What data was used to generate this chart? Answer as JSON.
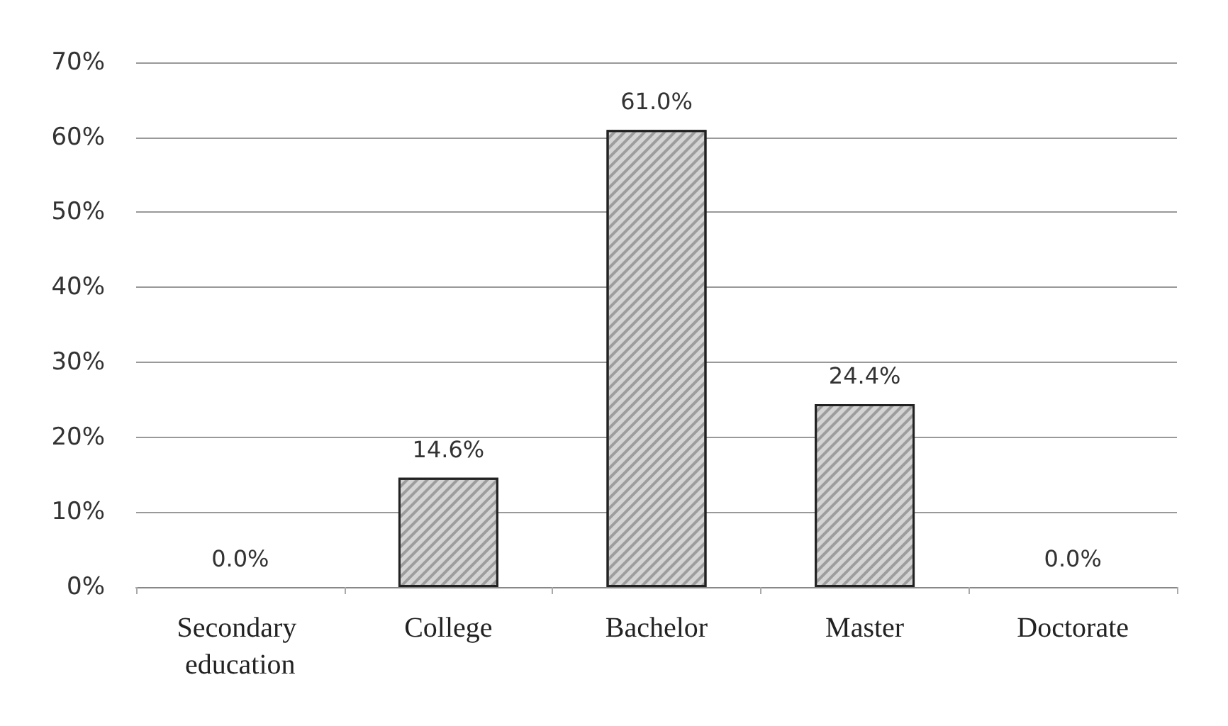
{
  "chart_data": {
    "type": "bar",
    "categories": [
      "Secondary education",
      "College",
      "Bachelor",
      "Master",
      "Doctorate"
    ],
    "values": [
      0.0,
      14.6,
      61.0,
      24.4,
      0.0
    ],
    "value_labels": [
      "0.0%",
      "14.6%",
      "61.0%",
      "24.4%",
      "0.0%"
    ],
    "color": "#d4d4d4",
    "ylim": [
      0,
      70
    ],
    "yticks": [
      {
        "value": 0,
        "label": "0%"
      },
      {
        "value": 10,
        "label": "10%"
      },
      {
        "value": 20,
        "label": "20%"
      },
      {
        "value": 30,
        "label": "30%"
      },
      {
        "value": 40,
        "label": "40%"
      },
      {
        "value": 50,
        "label": "50%"
      },
      {
        "value": 60,
        "label": "60%"
      },
      {
        "value": 70,
        "label": "70%"
      }
    ],
    "grid": "y"
  }
}
